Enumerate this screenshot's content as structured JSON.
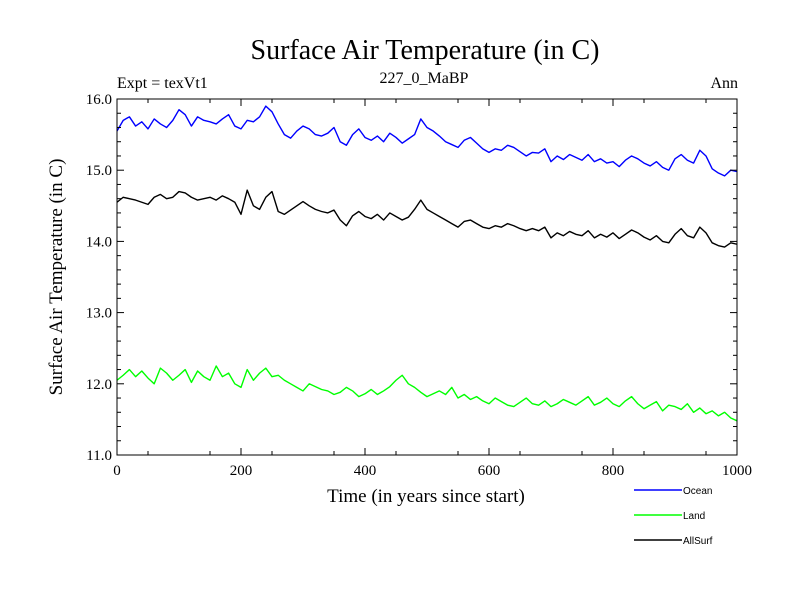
{
  "chart_data": {
    "type": "line",
    "title": "Surface Air Temperature (in C)",
    "subtitle_left": "Expt = texVt1",
    "subtitle_center": "227_0_MaBP",
    "subtitle_right": "Ann",
    "xlabel": "Time (in years since start)",
    "ylabel": "Surface Air Temperature (in C)",
    "xlim": [
      0,
      1000
    ],
    "ylim": [
      11.0,
      16.0
    ],
    "x_ticks": [
      0,
      200,
      400,
      600,
      800,
      1000
    ],
    "x_tick_labels": [
      "0",
      "200",
      "400",
      "600",
      "800",
      "1000"
    ],
    "y_ticks": [
      11.0,
      12.0,
      13.0,
      14.0,
      15.0,
      16.0
    ],
    "y_tick_labels": [
      "11.0",
      "12.0",
      "13.0",
      "14.0",
      "15.0",
      "16.0"
    ],
    "grid": false,
    "legend_position": "bottom-right",
    "x_step": 10,
    "series": [
      {
        "name": "Ocean",
        "color": "#0000ff",
        "values": [
          15.55,
          15.7,
          15.75,
          15.62,
          15.68,
          15.58,
          15.72,
          15.65,
          15.6,
          15.7,
          15.85,
          15.78,
          15.62,
          15.75,
          15.7,
          15.68,
          15.65,
          15.72,
          15.78,
          15.62,
          15.58,
          15.7,
          15.68,
          15.75,
          15.9,
          15.82,
          15.65,
          15.5,
          15.45,
          15.55,
          15.62,
          15.58,
          15.5,
          15.48,
          15.52,
          15.6,
          15.4,
          15.35,
          15.5,
          15.58,
          15.46,
          15.42,
          15.48,
          15.4,
          15.52,
          15.46,
          15.38,
          15.44,
          15.5,
          15.72,
          15.6,
          15.55,
          15.48,
          15.4,
          15.36,
          15.32,
          15.42,
          15.46,
          15.38,
          15.3,
          15.25,
          15.3,
          15.28,
          15.35,
          15.32,
          15.26,
          15.2,
          15.25,
          15.24,
          15.3,
          15.12,
          15.2,
          15.15,
          15.22,
          15.18,
          15.14,
          15.22,
          15.12,
          15.16,
          15.1,
          15.12,
          15.05,
          15.14,
          15.2,
          15.16,
          15.1,
          15.06,
          15.12,
          15.04,
          15.0,
          15.16,
          15.22,
          15.14,
          15.1,
          15.28,
          15.2,
          15.02,
          14.96,
          14.92,
          15.0,
          14.98
        ]
      },
      {
        "name": "Land",
        "color": "#00ff00",
        "values": [
          12.05,
          12.12,
          12.2,
          12.1,
          12.18,
          12.08,
          12.0,
          12.22,
          12.15,
          12.05,
          12.12,
          12.2,
          12.02,
          12.18,
          12.1,
          12.05,
          12.25,
          12.1,
          12.15,
          12.0,
          11.95,
          12.2,
          12.05,
          12.15,
          12.22,
          12.1,
          12.12,
          12.05,
          12.0,
          11.95,
          11.9,
          12.0,
          11.96,
          11.92,
          11.9,
          11.85,
          11.88,
          11.95,
          11.9,
          11.82,
          11.86,
          11.92,
          11.85,
          11.9,
          11.96,
          12.05,
          12.12,
          12.0,
          11.95,
          11.88,
          11.82,
          11.86,
          11.9,
          11.85,
          11.95,
          11.8,
          11.85,
          11.78,
          11.82,
          11.76,
          11.72,
          11.8,
          11.75,
          11.7,
          11.68,
          11.74,
          11.8,
          11.72,
          11.7,
          11.76,
          11.68,
          11.72,
          11.78,
          11.74,
          11.7,
          11.76,
          11.82,
          11.7,
          11.74,
          11.8,
          11.72,
          11.68,
          11.76,
          11.82,
          11.72,
          11.65,
          11.7,
          11.75,
          11.62,
          11.7,
          11.68,
          11.64,
          11.72,
          11.6,
          11.66,
          11.58,
          11.62,
          11.55,
          11.6,
          11.52,
          11.48
        ]
      },
      {
        "name": "AllSurf",
        "color": "#000000",
        "values": [
          14.55,
          14.62,
          14.6,
          14.58,
          14.55,
          14.52,
          14.62,
          14.66,
          14.6,
          14.62,
          14.7,
          14.68,
          14.62,
          14.58,
          14.6,
          14.62,
          14.58,
          14.64,
          14.6,
          14.55,
          14.38,
          14.72,
          14.5,
          14.45,
          14.62,
          14.7,
          14.42,
          14.38,
          14.44,
          14.5,
          14.56,
          14.5,
          14.45,
          14.42,
          14.4,
          14.44,
          14.3,
          14.22,
          14.36,
          14.42,
          14.35,
          14.32,
          14.38,
          14.3,
          14.4,
          14.35,
          14.3,
          14.34,
          14.45,
          14.58,
          14.45,
          14.4,
          14.35,
          14.3,
          14.25,
          14.2,
          14.28,
          14.3,
          14.25,
          14.2,
          14.18,
          14.22,
          14.2,
          14.25,
          14.22,
          14.18,
          14.15,
          14.18,
          14.15,
          14.2,
          14.05,
          14.12,
          14.08,
          14.14,
          14.1,
          14.08,
          14.15,
          14.05,
          14.1,
          14.06,
          14.12,
          14.04,
          14.1,
          14.16,
          14.12,
          14.06,
          14.02,
          14.08,
          14.0,
          13.98,
          14.1,
          14.18,
          14.08,
          14.05,
          14.2,
          14.12,
          13.98,
          13.94,
          13.92,
          13.98,
          13.96
        ]
      }
    ]
  }
}
